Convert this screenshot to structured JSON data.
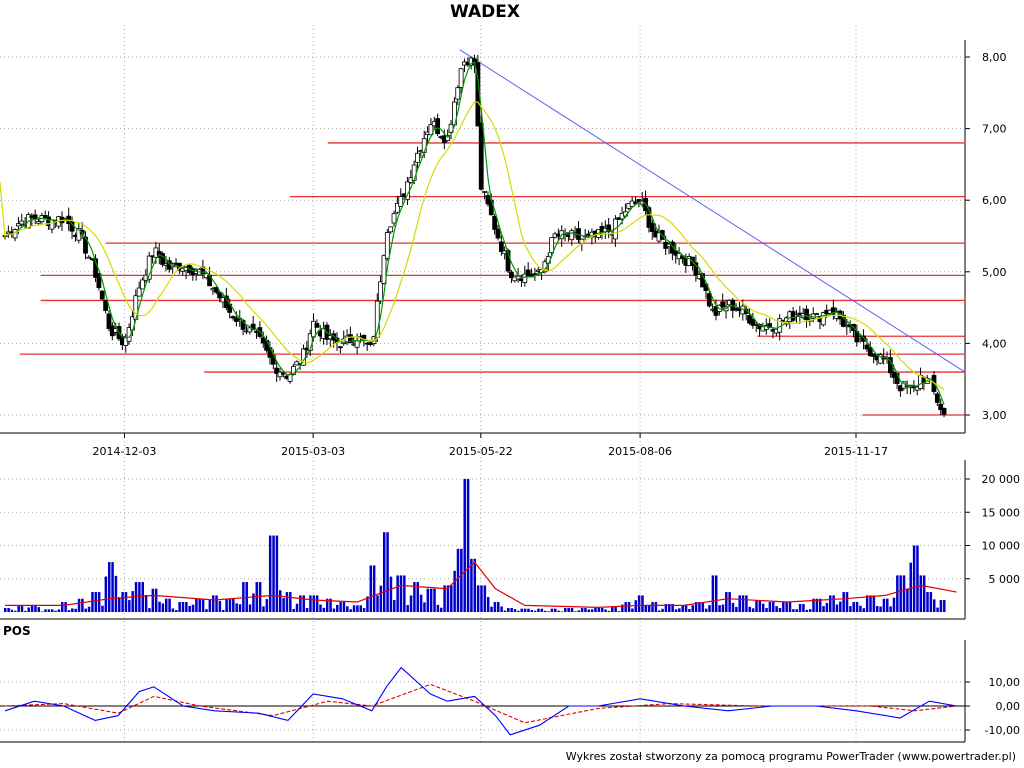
{
  "header": {
    "title": "WADEX"
  },
  "pos_panel": {
    "label": "POS"
  },
  "footer": {
    "credit": "Wykres został stworzony za pomocą programu PowerTrader (www.powertrader.pl)"
  },
  "colors": {
    "candle_up": "#ffffff",
    "candle_down": "#000000",
    "ma_short": "#009900",
    "ma_long": "#d9d900",
    "support_lines": "#e63232",
    "trend_line": "#5a5aff",
    "volume_bars": "#0000cc",
    "volume_avg": "#e00000",
    "pos_line": "#0000ff",
    "pos_signal": "#e00000",
    "grid": "#aaaaaa"
  },
  "chart_data": [
    {
      "type": "candlestick",
      "title": "WADEX",
      "x_tick_labels": [
        "2014-12-03",
        "2015-03-03",
        "2015-05-22",
        "2015-08-06",
        "2015-11-17"
      ],
      "y_tick_labels": [
        "3,00",
        "4,00",
        "5,00",
        "6,00",
        "7,00",
        "8,00"
      ],
      "ylim": [
        2.8,
        8.25
      ],
      "grid": true,
      "x_start": "2014-10-07",
      "series_close": [
        [
          "2014-10-07",
          5.5
        ],
        [
          "2014-10-14",
          5.7
        ],
        [
          "2014-10-21",
          5.75
        ],
        [
          "2014-10-28",
          5.72
        ],
        [
          "2014-11-04",
          5.75
        ],
        [
          "2014-11-12",
          5.5
        ],
        [
          "2014-11-19",
          5.0
        ],
        [
          "2014-11-26",
          4.2
        ],
        [
          "2014-12-03",
          4.0
        ],
        [
          "2014-12-10",
          4.8
        ],
        [
          "2014-12-17",
          5.3
        ],
        [
          "2014-12-24",
          5.05
        ],
        [
          "2014-12-31",
          5.1
        ],
        [
          "2015-01-08",
          5.0
        ],
        [
          "2015-01-15",
          4.75
        ],
        [
          "2015-01-22",
          4.45
        ],
        [
          "2015-01-29",
          4.25
        ],
        [
          "2015-02-05",
          4.05
        ],
        [
          "2015-02-12",
          3.7
        ],
        [
          "2015-02-19",
          3.55
        ],
        [
          "2015-02-26",
          3.8
        ],
        [
          "2015-03-03",
          4.3
        ],
        [
          "2015-03-10",
          4.05
        ],
        [
          "2015-03-17",
          4.0
        ],
        [
          "2015-03-24",
          4.1
        ],
        [
          "2015-03-31",
          3.9
        ],
        [
          "2015-04-07",
          5.6
        ],
        [
          "2015-04-14",
          6.0
        ],
        [
          "2015-04-21",
          6.6
        ],
        [
          "2015-04-28",
          7.1
        ],
        [
          "2015-05-06",
          6.85
        ],
        [
          "2015-05-12",
          7.8
        ],
        [
          "2015-05-15",
          8.0
        ],
        [
          "2015-05-19",
          7.9
        ],
        [
          "2015-05-22",
          6.2
        ],
        [
          "2015-05-29",
          5.6
        ],
        [
          "2015-06-05",
          5.0
        ],
        [
          "2015-06-12",
          4.95
        ],
        [
          "2015-06-19",
          4.95
        ],
        [
          "2015-06-26",
          5.5
        ],
        [
          "2015-07-03",
          5.5
        ],
        [
          "2015-07-10",
          5.45
        ],
        [
          "2015-07-17",
          5.5
        ],
        [
          "2015-07-24",
          5.6
        ],
        [
          "2015-07-31",
          5.9
        ],
        [
          "2015-08-06",
          6.0
        ],
        [
          "2015-08-13",
          5.5
        ],
        [
          "2015-08-20",
          5.35
        ],
        [
          "2015-08-27",
          5.2
        ],
        [
          "2015-09-03",
          5.0
        ],
        [
          "2015-09-10",
          4.4
        ],
        [
          "2015-09-17",
          4.55
        ],
        [
          "2015-09-24",
          4.45
        ],
        [
          "2015-10-01",
          4.25
        ],
        [
          "2015-10-08",
          4.25
        ],
        [
          "2015-10-15",
          4.35
        ],
        [
          "2015-10-22",
          4.45
        ],
        [
          "2015-10-29",
          4.35
        ],
        [
          "2015-11-05",
          4.5
        ],
        [
          "2015-11-12",
          4.25
        ],
        [
          "2015-11-17",
          4.05
        ],
        [
          "2015-11-24",
          3.9
        ],
        [
          "2015-12-01",
          3.75
        ],
        [
          "2015-12-08",
          3.4
        ],
        [
          "2015-12-15",
          3.35
        ],
        [
          "2015-12-18",
          3.55
        ],
        [
          "2015-12-22",
          3.45
        ],
        [
          "2015-12-29",
          3.0
        ]
      ],
      "horizontal_lines": [
        {
          "value": 6.8,
          "from": "2015-03-10",
          "to": "2016-01-08"
        },
        {
          "value": 6.05,
          "from": "2015-02-20",
          "to": "2016-01-08"
        },
        {
          "value": 5.4,
          "from": "2014-11-24",
          "to": "2016-01-08"
        },
        {
          "value": 4.95,
          "from": "2014-10-24",
          "to": "2016-01-08"
        },
        {
          "value": 4.6,
          "from": "2014-10-24",
          "to": "2016-01-08"
        },
        {
          "value": 4.1,
          "from": "2015-10-01",
          "to": "2016-01-08"
        },
        {
          "value": 3.85,
          "from": "2014-10-14",
          "to": "2016-01-08"
        },
        {
          "value": 3.6,
          "from": "2015-01-10",
          "to": "2016-01-08"
        },
        {
          "value": 3.0,
          "from": "2015-11-20",
          "to": "2016-01-08"
        }
      ],
      "trend_line": [
        [
          "2015-05-12",
          8.1
        ],
        [
          "2016-01-08",
          3.6
        ]
      ]
    },
    {
      "type": "bar",
      "title": "",
      "y_tick_labels": [
        "5 000",
        "10 000",
        "15 000",
        "20 000"
      ],
      "ylim": [
        0,
        21000
      ],
      "volume_approx": [
        [
          "2014-10-07",
          600
        ],
        [
          "2014-10-14",
          900
        ],
        [
          "2014-10-21",
          1000
        ],
        [
          "2014-10-28",
          400
        ],
        [
          "2014-11-04",
          1500
        ],
        [
          "2014-11-12",
          2000
        ],
        [
          "2014-11-19",
          3000
        ],
        [
          "2014-11-26",
          7500
        ],
        [
          "2014-12-03",
          3000
        ],
        [
          "2014-12-10",
          4500
        ],
        [
          "2014-12-17",
          3500
        ],
        [
          "2014-12-24",
          2000
        ],
        [
          "2014-12-31",
          1500
        ],
        [
          "2015-01-08",
          2000
        ],
        [
          "2015-01-15",
          2500
        ],
        [
          "2015-01-22",
          2000
        ],
        [
          "2015-01-29",
          4500
        ],
        [
          "2015-02-05",
          4500
        ],
        [
          "2015-02-12",
          11500
        ],
        [
          "2015-02-19",
          3000
        ],
        [
          "2015-02-26",
          2500
        ],
        [
          "2015-03-03",
          2500
        ],
        [
          "2015-03-10",
          2000
        ],
        [
          "2015-03-17",
          1500
        ],
        [
          "2015-03-24",
          1000
        ],
        [
          "2015-03-31",
          7000
        ],
        [
          "2015-04-07",
          12000
        ],
        [
          "2015-04-14",
          5500
        ],
        [
          "2015-04-21",
          4500
        ],
        [
          "2015-04-28",
          3500
        ],
        [
          "2015-05-06",
          4000
        ],
        [
          "2015-05-12",
          9500
        ],
        [
          "2015-05-15",
          20000
        ],
        [
          "2015-05-19",
          8000
        ],
        [
          "2015-05-22",
          4000
        ],
        [
          "2015-05-29",
          1500
        ],
        [
          "2015-06-05",
          600
        ],
        [
          "2015-06-12",
          500
        ],
        [
          "2015-06-19",
          500
        ],
        [
          "2015-06-26",
          500
        ],
        [
          "2015-07-03",
          600
        ],
        [
          "2015-07-10",
          600
        ],
        [
          "2015-07-17",
          600
        ],
        [
          "2015-07-24",
          800
        ],
        [
          "2015-07-31",
          1500
        ],
        [
          "2015-08-06",
          2500
        ],
        [
          "2015-08-13",
          1500
        ],
        [
          "2015-08-20",
          1200
        ],
        [
          "2015-08-27",
          1000
        ],
        [
          "2015-09-03",
          1500
        ],
        [
          "2015-09-10",
          5500
        ],
        [
          "2015-09-17",
          3000
        ],
        [
          "2015-09-24",
          2500
        ],
        [
          "2015-10-01",
          1800
        ],
        [
          "2015-10-08",
          1500
        ],
        [
          "2015-10-15",
          1500
        ],
        [
          "2015-10-22",
          1200
        ],
        [
          "2015-10-29",
          2000
        ],
        [
          "2015-11-05",
          2500
        ],
        [
          "2015-11-12",
          3000
        ],
        [
          "2015-11-17",
          1500
        ],
        [
          "2015-11-24",
          2500
        ],
        [
          "2015-12-01",
          2000
        ],
        [
          "2015-12-08",
          5500
        ],
        [
          "2015-12-15",
          10000
        ],
        [
          "2015-12-18",
          5500
        ],
        [
          "2015-12-22",
          3000
        ],
        [
          "2015-12-29",
          1800
        ]
      ],
      "moving_average_approx": [
        [
          "2014-10-07",
          1000
        ],
        [
          "2014-11-04",
          1000
        ],
        [
          "2014-11-26",
          2000
        ],
        [
          "2014-12-17",
          2500
        ],
        [
          "2015-01-15",
          1800
        ],
        [
          "2015-02-12",
          2500
        ],
        [
          "2015-03-03",
          1800
        ],
        [
          "2015-03-24",
          1500
        ],
        [
          "2015-04-14",
          4000
        ],
        [
          "2015-05-06",
          3500
        ],
        [
          "2015-05-19",
          7500
        ],
        [
          "2015-05-29",
          3500
        ],
        [
          "2015-06-12",
          1000
        ],
        [
          "2015-07-17",
          700
        ],
        [
          "2015-08-06",
          1000
        ],
        [
          "2015-08-27",
          1000
        ],
        [
          "2015-09-17",
          2000
        ],
        [
          "2015-10-15",
          1500
        ],
        [
          "2015-11-12",
          2000
        ],
        [
          "2015-12-01",
          2500
        ],
        [
          "2015-12-18",
          4000
        ],
        [
          "2016-01-04",
          3000
        ]
      ]
    },
    {
      "type": "line",
      "title": "POS",
      "y_tick_labels": [
        "-10,00",
        "0,00",
        "10,00"
      ],
      "ylim": [
        -15,
        20
      ],
      "series_names": [],
      "pos_approx": [
        [
          "2014-10-07",
          -2
        ],
        [
          "2014-10-21",
          2
        ],
        [
          "2014-11-04",
          0
        ],
        [
          "2014-11-19",
          -6
        ],
        [
          "2014-11-30",
          -4
        ],
        [
          "2014-12-10",
          6
        ],
        [
          "2014-12-17",
          8
        ],
        [
          "2014-12-31",
          0
        ],
        [
          "2015-01-15",
          -2
        ],
        [
          "2015-02-05",
          -3
        ],
        [
          "2015-02-19",
          -6
        ],
        [
          "2015-03-03",
          5
        ],
        [
          "2015-03-17",
          3
        ],
        [
          "2015-03-31",
          -2
        ],
        [
          "2015-04-07",
          8
        ],
        [
          "2015-04-14",
          16
        ],
        [
          "2015-04-28",
          5
        ],
        [
          "2015-05-06",
          2
        ],
        [
          "2015-05-19",
          4
        ],
        [
          "2015-05-29",
          -4
        ],
        [
          "2015-06-05",
          -12
        ],
        [
          "2015-06-19",
          -8
        ],
        [
          "2015-07-03",
          0
        ],
        [
          "2015-07-17",
          0
        ],
        [
          "2015-08-06",
          3
        ],
        [
          "2015-08-27",
          0
        ],
        [
          "2015-09-17",
          -2
        ],
        [
          "2015-10-08",
          0
        ],
        [
          "2015-10-29",
          0
        ],
        [
          "2015-11-17",
          -2
        ],
        [
          "2015-12-08",
          -5
        ],
        [
          "2015-12-22",
          2
        ],
        [
          "2016-01-04",
          0
        ]
      ],
      "signal_approx": [
        [
          "2014-10-07",
          0
        ],
        [
          "2014-11-04",
          1
        ],
        [
          "2014-11-30",
          -3
        ],
        [
          "2014-12-17",
          4
        ],
        [
          "2015-01-08",
          0
        ],
        [
          "2015-02-12",
          -4
        ],
        [
          "2015-03-10",
          2
        ],
        [
          "2015-03-31",
          0
        ],
        [
          "2015-04-28",
          9
        ],
        [
          "2015-05-19",
          2
        ],
        [
          "2015-06-12",
          -7
        ],
        [
          "2015-07-17",
          -1
        ],
        [
          "2015-08-20",
          1
        ],
        [
          "2015-10-01",
          0
        ],
        [
          "2015-11-24",
          0
        ],
        [
          "2015-12-15",
          -2
        ],
        [
          "2016-01-04",
          0
        ]
      ]
    }
  ]
}
